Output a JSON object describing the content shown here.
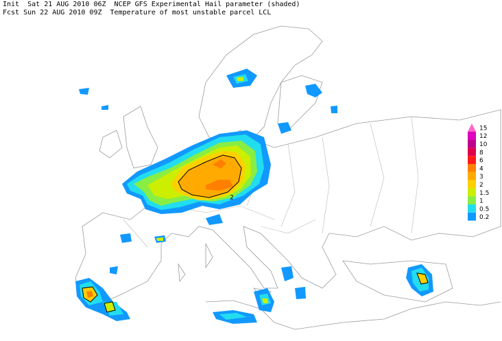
{
  "header": {
    "line1": "Init  Sat 21 AUG 2010 06Z  NCEP GFS Experimental Hail parameter (shaded)",
    "line2": "Fcst Sun 22 AUG 2010 09Z  Temperature of most unstable parcel LCL"
  },
  "legend": [
    {
      "label": "15",
      "color": "#ff66cc"
    },
    {
      "label": "12",
      "color": "#e000c0"
    },
    {
      "label": "10",
      "color": "#c0008c"
    },
    {
      "label": "8",
      "color": "#e0004c"
    },
    {
      "label": "6",
      "color": "#ff1a1a"
    },
    {
      "label": "4",
      "color": "#ff8000"
    },
    {
      "label": "3",
      "color": "#ffaa00"
    },
    {
      "label": "2",
      "color": "#ffd000"
    },
    {
      "label": "1.5",
      "color": "#ccee00"
    },
    {
      "label": "1",
      "color": "#88ee44"
    },
    {
      "label": "0.5",
      "color": "#22ddee"
    },
    {
      "label": "0.2",
      "color": "#1199ff"
    }
  ],
  "map_labels": [
    "2"
  ]
}
